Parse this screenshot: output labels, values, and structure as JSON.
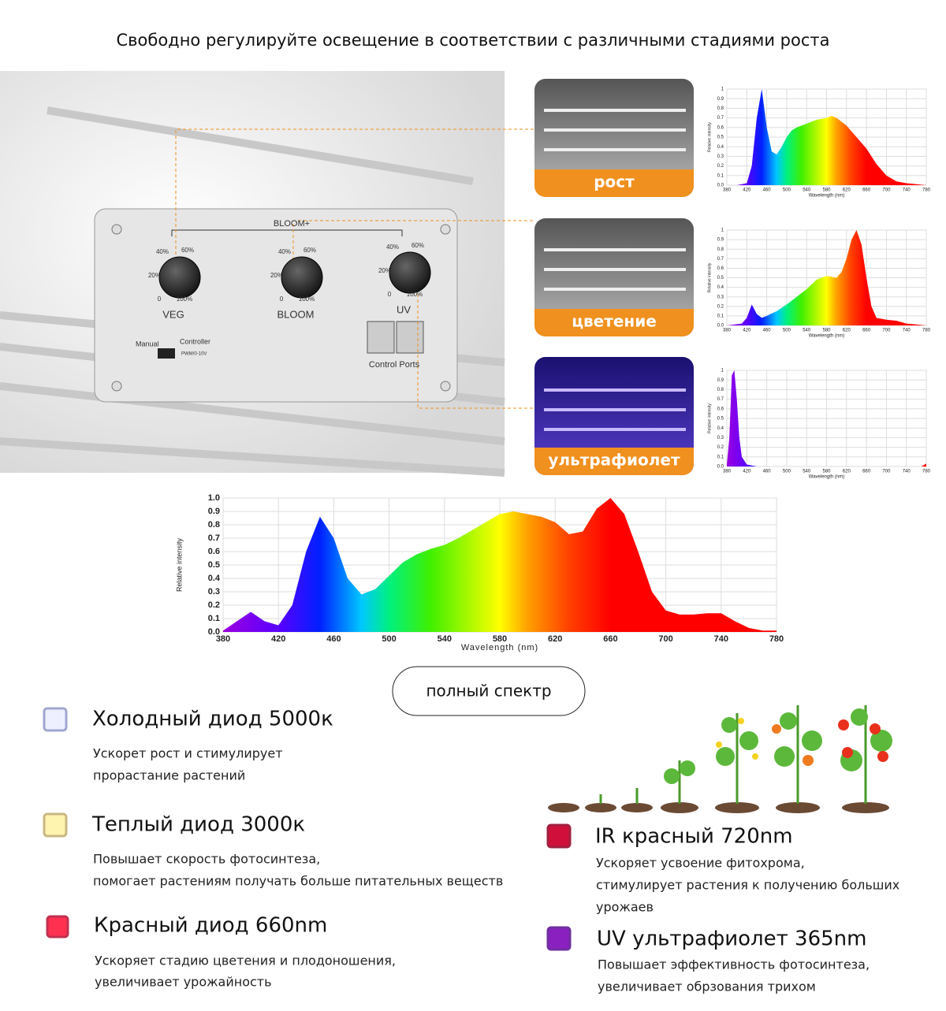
{
  "title": "Свободно регулируйте освещение в соответствии с различными стадиями роста",
  "panel": {
    "header": "BLOOM+",
    "knobs": [
      {
        "name": "VEG",
        "marks": [
          "20%",
          "40%",
          "60%",
          "0",
          "100%"
        ]
      },
      {
        "name": "BLOOM",
        "marks": [
          "20%",
          "40%",
          "60%",
          "0",
          "100%"
        ]
      },
      {
        "name": "UV",
        "marks": [
          "20%",
          "40%",
          "60%",
          "0",
          "100%"
        ]
      }
    ],
    "switch": [
      "Manual",
      "Controller",
      "PWM/0-10V"
    ],
    "ports": "Control Ports"
  },
  "stages": [
    "рост",
    "цветение",
    "ультрафиолет"
  ],
  "chart_data": [
    {
      "type": "area",
      "ylabel": "Relative intensity",
      "xlabel": "Wavelength (nm)",
      "grid": true,
      "x": [
        380,
        400,
        420,
        430,
        440,
        450,
        460,
        470,
        480,
        490,
        500,
        510,
        520,
        540,
        560,
        580,
        590,
        600,
        620,
        640,
        660,
        680,
        700,
        720,
        740,
        760,
        780
      ],
      "values": [
        0,
        0,
        0.02,
        0.2,
        0.7,
        1.0,
        0.6,
        0.35,
        0.32,
        0.4,
        0.5,
        0.57,
        0.6,
        0.64,
        0.68,
        0.7,
        0.72,
        0.7,
        0.62,
        0.5,
        0.38,
        0.22,
        0.1,
        0.04,
        0.02,
        0.01,
        0
      ],
      "xlim": [
        380,
        780
      ],
      "ylim": [
        0,
        1
      ],
      "xticks": [
        380,
        420,
        460,
        500,
        540,
        580,
        620,
        660,
        700,
        740,
        780
      ],
      "yticks": [
        {
          "value": 0,
          "label": "0.0"
        },
        0.1,
        0.2,
        0.3,
        0.4,
        0.5,
        0.6,
        0.7,
        0.8,
        0.9,
        1
      ]
    },
    {
      "type": "area",
      "ylabel": "Relative intensity",
      "xlabel": "Wavelength (nm)",
      "grid": true,
      "x": [
        380,
        410,
        420,
        430,
        440,
        450,
        460,
        480,
        500,
        520,
        540,
        560,
        580,
        600,
        610,
        620,
        630,
        640,
        650,
        660,
        670,
        680,
        700,
        720,
        740,
        760,
        780
      ],
      "values": [
        0,
        0.02,
        0.08,
        0.22,
        0.12,
        0.08,
        0.1,
        0.15,
        0.22,
        0.3,
        0.38,
        0.48,
        0.52,
        0.5,
        0.56,
        0.7,
        0.9,
        1.0,
        0.85,
        0.5,
        0.2,
        0.08,
        0.06,
        0.05,
        0.02,
        0.01,
        0
      ],
      "xlim": [
        380,
        780
      ],
      "ylim": [
        0,
        1
      ],
      "xticks": [
        380,
        420,
        460,
        500,
        540,
        580,
        620,
        660,
        700,
        740,
        780
      ],
      "yticks": [
        {
          "value": 0,
          "label": "0.0"
        },
        0.1,
        0.2,
        0.3,
        0.4,
        0.5,
        0.6,
        0.7,
        0.8,
        0.9,
        1
      ]
    },
    {
      "type": "area",
      "ylabel": "Relative intensity",
      "xlabel": "Wavelength (nm)",
      "grid": true,
      "x": [
        380,
        385,
        390,
        395,
        400,
        405,
        410,
        420,
        440,
        500,
        600,
        700,
        770,
        780
      ],
      "values": [
        0.02,
        0.3,
        0.95,
        1.0,
        0.7,
        0.3,
        0.1,
        0.02,
        0,
        0,
        0,
        0,
        0,
        0.03
      ],
      "xlim": [
        380,
        780
      ],
      "ylim": [
        0,
        1
      ],
      "xticks": [
        380,
        420,
        460,
        500,
        540,
        580,
        620,
        660,
        700,
        740,
        780
      ],
      "yticks": [
        {
          "value": 0,
          "label": "0.0"
        },
        0.1,
        0.2,
        0.3,
        0.4,
        0.5,
        0.6,
        0.7,
        0.8,
        0.9,
        1
      ]
    },
    {
      "type": "area",
      "ylabel": "Relative intensity",
      "xlabel": "Wavelength (nm)",
      "grid": true,
      "x": [
        380,
        390,
        400,
        410,
        420,
        430,
        440,
        450,
        460,
        470,
        480,
        490,
        500,
        510,
        520,
        530,
        540,
        550,
        560,
        570,
        580,
        590,
        600,
        610,
        620,
        630,
        640,
        650,
        660,
        670,
        680,
        690,
        700,
        710,
        720,
        730,
        740,
        750,
        760,
        770,
        780
      ],
      "values": [
        0.01,
        0.08,
        0.15,
        0.08,
        0.05,
        0.2,
        0.6,
        0.86,
        0.7,
        0.4,
        0.28,
        0.32,
        0.42,
        0.52,
        0.58,
        0.62,
        0.65,
        0.7,
        0.76,
        0.82,
        0.88,
        0.9,
        0.88,
        0.86,
        0.82,
        0.73,
        0.75,
        0.92,
        1.0,
        0.88,
        0.6,
        0.3,
        0.16,
        0.13,
        0.13,
        0.14,
        0.14,
        0.08,
        0.03,
        0.01,
        0.01
      ],
      "xlim": [
        380,
        780
      ],
      "ylim": [
        0,
        1
      ],
      "xticks": [
        380,
        420,
        460,
        500,
        540,
        580,
        620,
        660,
        700,
        740,
        780
      ],
      "yticks": [
        {
          "value": 0,
          "label": "0.0"
        },
        0.1,
        0.2,
        0.3,
        0.4,
        0.5,
        0.6,
        0.7,
        0.8,
        0.9,
        {
          "value": 1,
          "label": "1.0"
        }
      ]
    }
  ],
  "button": "полный спектр",
  "leds": [
    {
      "title": "Холодный диод 5000к",
      "lines": [
        "Ускорет рост и стимулирует",
        "прорастание растений"
      ]
    },
    {
      "title": "Теплый диод 3000к",
      "lines": [
        "Повышает скорость фотосинтеза,",
        "помогает растениям получать больше питательных веществ"
      ]
    },
    {
      "title": "Красный диод 660nm",
      "lines": [
        "Ускоряет стадию цветения и плодоношения,",
        "увеличивает урожайность"
      ]
    },
    {
      "title": "IR красный 720nm",
      "lines": [
        "Ускоряет усвоение фитохрома,",
        "стимулирует растения к получению больших",
        "урожаев"
      ]
    },
    {
      "title": "UV ультрафиолет 365nm",
      "lines": [
        "Повышает эффективность фотосинтеза,",
        "увеличивает обрзования трихом"
      ]
    }
  ]
}
